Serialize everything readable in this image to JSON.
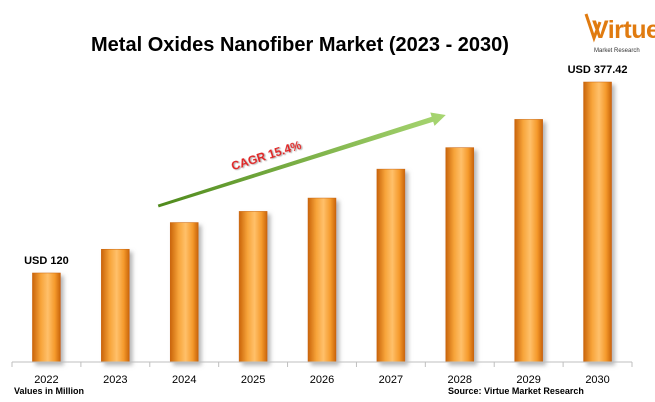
{
  "header": {
    "title": "Metal Oxides Nanofiber Market (2023 - 2030)"
  },
  "logo": {
    "word": "Virtue",
    "subtitle": "Market Research"
  },
  "footer": {
    "units_note": "Values in Million",
    "source": "Source: Virtue Market Research"
  },
  "colors": {
    "bar_main": "#f59a2c",
    "bar_dark": "#c9640a",
    "arrow": "#8cc152",
    "cagr_text": "#e02020"
  },
  "chart_data": {
    "type": "bar",
    "title": "Metal Oxides Nanofiber Market (2023 - 2030)",
    "categories": [
      "2022",
      "2023",
      "2024",
      "2025",
      "2026",
      "2027",
      "2028",
      "2029",
      "2030"
    ],
    "values": [
      120,
      152,
      188,
      203,
      221,
      260,
      289,
      327,
      377.42
    ],
    "ylim": [
      0,
      400
    ],
    "grid": false,
    "annotations": [
      {
        "category": "2022",
        "text": "USD 120"
      },
      {
        "category": "2030",
        "text": "USD 377.42"
      },
      {
        "text": "CAGR 15.4%",
        "from_category": "2024",
        "to_category": "2028"
      }
    ]
  }
}
